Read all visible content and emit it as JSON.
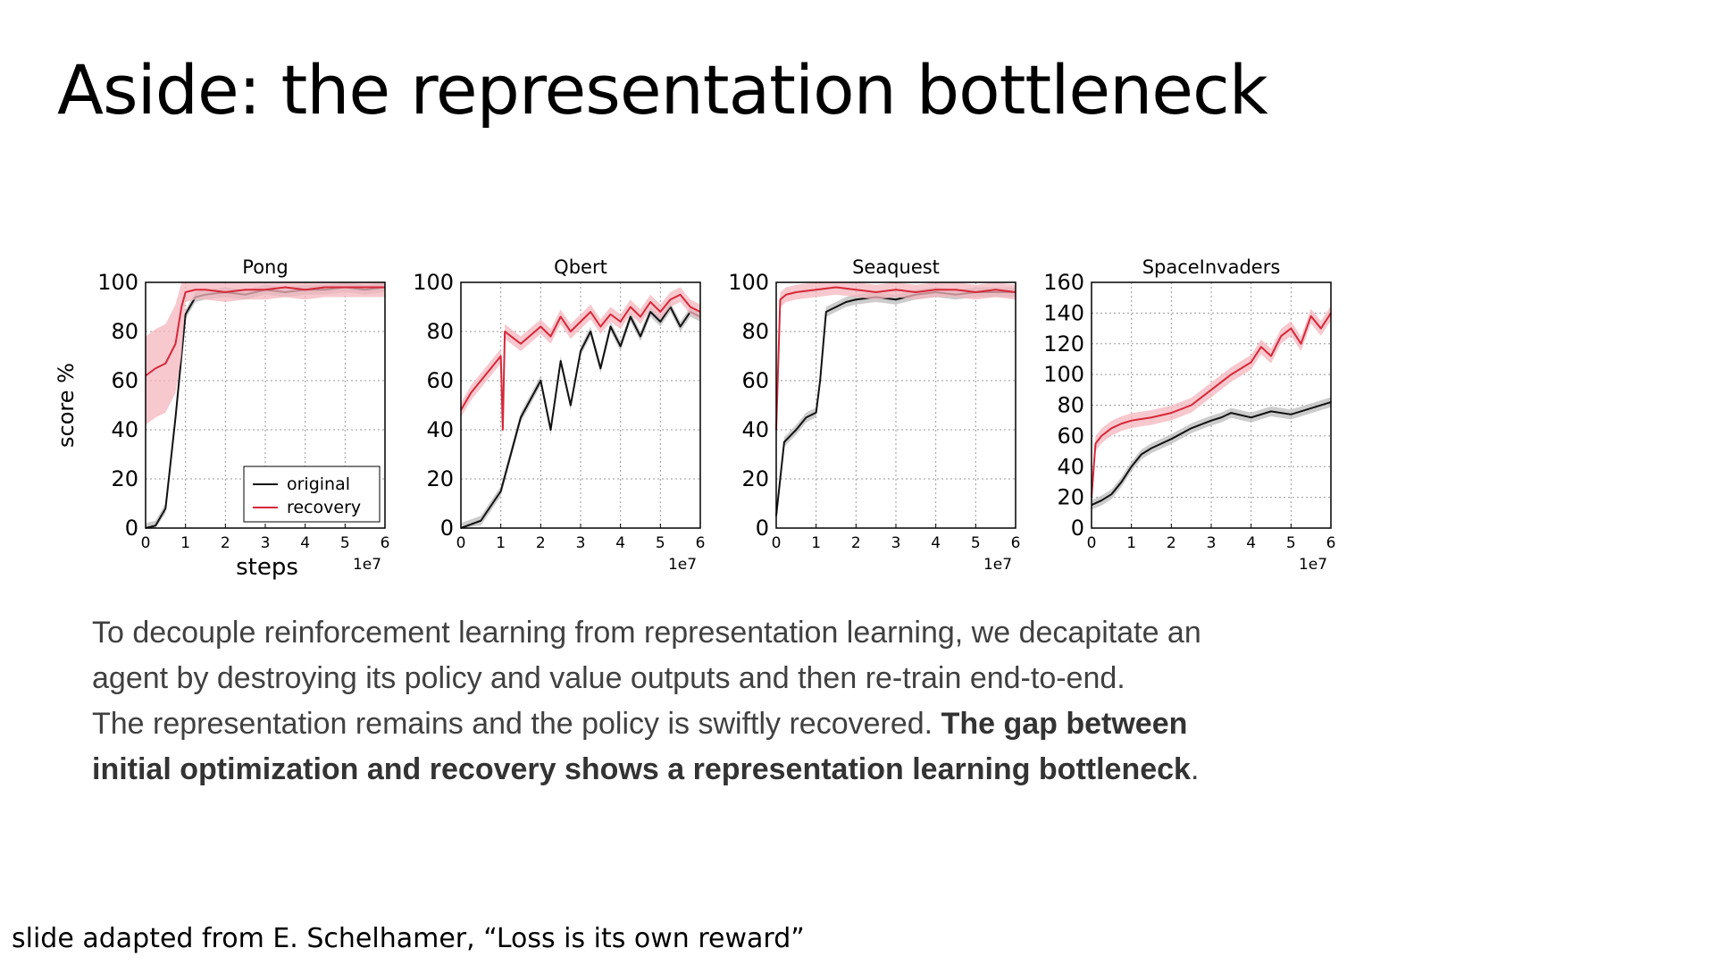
{
  "slide": {
    "title": "Aside: the representation bottleneck",
    "caption_line1": "To decouple reinforcement learning from representation learning, we decapitate an",
    "caption_line2": "agent by destroying its policy and value outputs and then re-train end-to-end.",
    "caption_line3_plain": "The representation remains and the policy is swiftly recovered. ",
    "caption_line3_bold": "The gap between",
    "caption_line4_bold": "initial optimization and recovery shows a representation learning bottleneck",
    "caption_line4_end": ".",
    "footer": "slide adapted from E. Schelhamer, “Loss is its own reward”"
  },
  "colors": {
    "original": "#111111",
    "recovery": "#d62839",
    "recovery_band": "#f4b6bd",
    "original_band": "#bbbbbb"
  },
  "chart_data": [
    {
      "type": "line",
      "title": "Pong",
      "xlabel": "steps",
      "ylabel": "score %",
      "xlim": [
        0,
        6
      ],
      "ylim": [
        0,
        100
      ],
      "xticks": [
        "0",
        "1",
        "2",
        "3",
        "4",
        "5",
        "6"
      ],
      "yticks": [
        "0",
        "20",
        "40",
        "60",
        "80",
        "100"
      ],
      "x_multiplier": "1e7",
      "grid": true,
      "legend": {
        "position": "lower-right",
        "entries": [
          "original",
          "recovery"
        ]
      },
      "series": [
        {
          "name": "original",
          "x": [
            0,
            0.25,
            0.5,
            0.75,
            1,
            1.25,
            1.5,
            2,
            2.5,
            3,
            3.5,
            4,
            4.5,
            5,
            5.5,
            6
          ],
          "y": [
            0,
            1,
            8,
            45,
            87,
            94,
            95,
            96,
            95,
            97,
            96,
            97,
            97,
            98,
            97,
            98
          ]
        },
        {
          "name": "recovery",
          "x": [
            0,
            0.25,
            0.5,
            0.75,
            0.9,
            1,
            1.25,
            1.5,
            2,
            2.5,
            3,
            3.5,
            4,
            4.5,
            5,
            5.5,
            6
          ],
          "y": [
            62,
            65,
            67,
            75,
            90,
            96,
            97,
            97,
            96,
            97,
            97,
            98,
            97,
            98,
            98,
            98,
            98
          ]
        }
      ]
    },
    {
      "type": "line",
      "title": "Qbert",
      "xlim": [
        0,
        6
      ],
      "ylim": [
        0,
        100
      ],
      "xticks": [
        "0",
        "1",
        "2",
        "3",
        "4",
        "5",
        "6"
      ],
      "yticks": [
        "0",
        "20",
        "40",
        "60",
        "80",
        "100"
      ],
      "x_multiplier": "1e7",
      "grid": true,
      "series": [
        {
          "name": "original",
          "x": [
            0,
            0.5,
            1,
            1.25,
            1.5,
            2,
            2.25,
            2.5,
            2.75,
            3,
            3.25,
            3.5,
            3.75,
            4,
            4.25,
            4.5,
            4.75,
            5,
            5.25,
            5.5,
            5.75,
            6
          ],
          "y": [
            0,
            3,
            15,
            30,
            45,
            60,
            40,
            68,
            50,
            72,
            80,
            65,
            82,
            74,
            86,
            78,
            88,
            84,
            90,
            82,
            88,
            86
          ]
        },
        {
          "name": "recovery",
          "x": [
            0,
            0.25,
            0.5,
            0.75,
            1,
            1.05,
            1.1,
            1.5,
            2,
            2.25,
            2.5,
            2.75,
            3,
            3.25,
            3.5,
            3.75,
            4,
            4.25,
            4.5,
            4.75,
            5,
            5.25,
            5.5,
            5.75,
            6
          ],
          "y": [
            48,
            55,
            60,
            65,
            70,
            40,
            80,
            75,
            82,
            78,
            86,
            80,
            84,
            88,
            82,
            87,
            84,
            90,
            86,
            92,
            88,
            93,
            95,
            90,
            88
          ]
        }
      ]
    },
    {
      "type": "line",
      "title": "Seaquest",
      "xlim": [
        0,
        6
      ],
      "ylim": [
        0,
        100
      ],
      "xticks": [
        "0",
        "1",
        "2",
        "3",
        "4",
        "5",
        "6"
      ],
      "yticks": [
        "0",
        "20",
        "40",
        "60",
        "80",
        "100"
      ],
      "x_multiplier": "1e7",
      "grid": true,
      "series": [
        {
          "name": "original",
          "x": [
            0,
            0.2,
            0.5,
            0.75,
            1,
            1.1,
            1.25,
            1.5,
            1.75,
            2,
            2.5,
            3,
            3.5,
            4,
            4.5,
            5,
            5.5,
            6
          ],
          "y": [
            5,
            35,
            40,
            45,
            47,
            60,
            88,
            90,
            92,
            93,
            94,
            93,
            95,
            96,
            95,
            96,
            96,
            96
          ]
        },
        {
          "name": "recovery",
          "x": [
            0,
            0.1,
            0.25,
            0.5,
            1,
            1.5,
            2,
            2.5,
            3,
            3.5,
            4,
            4.5,
            5,
            5.5,
            6
          ],
          "y": [
            40,
            93,
            95,
            96,
            97,
            98,
            97,
            96,
            97,
            96,
            97,
            97,
            96,
            97,
            96
          ]
        }
      ]
    },
    {
      "type": "line",
      "title": "SpaceInvaders",
      "xlim": [
        0,
        6
      ],
      "ylim": [
        0,
        160
      ],
      "xticks": [
        "0",
        "1",
        "2",
        "3",
        "4",
        "5",
        "6"
      ],
      "yticks": [
        "0",
        "20",
        "40",
        "60",
        "80",
        "100",
        "120",
        "140",
        "160"
      ],
      "x_multiplier": "1e7",
      "grid": true,
      "series": [
        {
          "name": "original",
          "x": [
            0,
            0.25,
            0.5,
            0.75,
            1,
            1.25,
            1.5,
            2,
            2.5,
            3,
            3.25,
            3.5,
            4,
            4.5,
            5,
            5.5,
            6
          ],
          "y": [
            15,
            18,
            22,
            30,
            40,
            48,
            52,
            58,
            65,
            70,
            72,
            75,
            72,
            76,
            74,
            78,
            82
          ]
        },
        {
          "name": "recovery",
          "x": [
            0,
            0.1,
            0.25,
            0.5,
            0.75,
            1,
            1.5,
            2,
            2.5,
            3,
            3.25,
            3.5,
            4,
            4.25,
            4.5,
            4.75,
            5,
            5.25,
            5.5,
            5.75,
            6
          ],
          "y": [
            20,
            55,
            60,
            65,
            68,
            70,
            72,
            75,
            80,
            90,
            95,
            100,
            108,
            118,
            112,
            125,
            130,
            120,
            138,
            130,
            140
          ]
        }
      ]
    }
  ]
}
